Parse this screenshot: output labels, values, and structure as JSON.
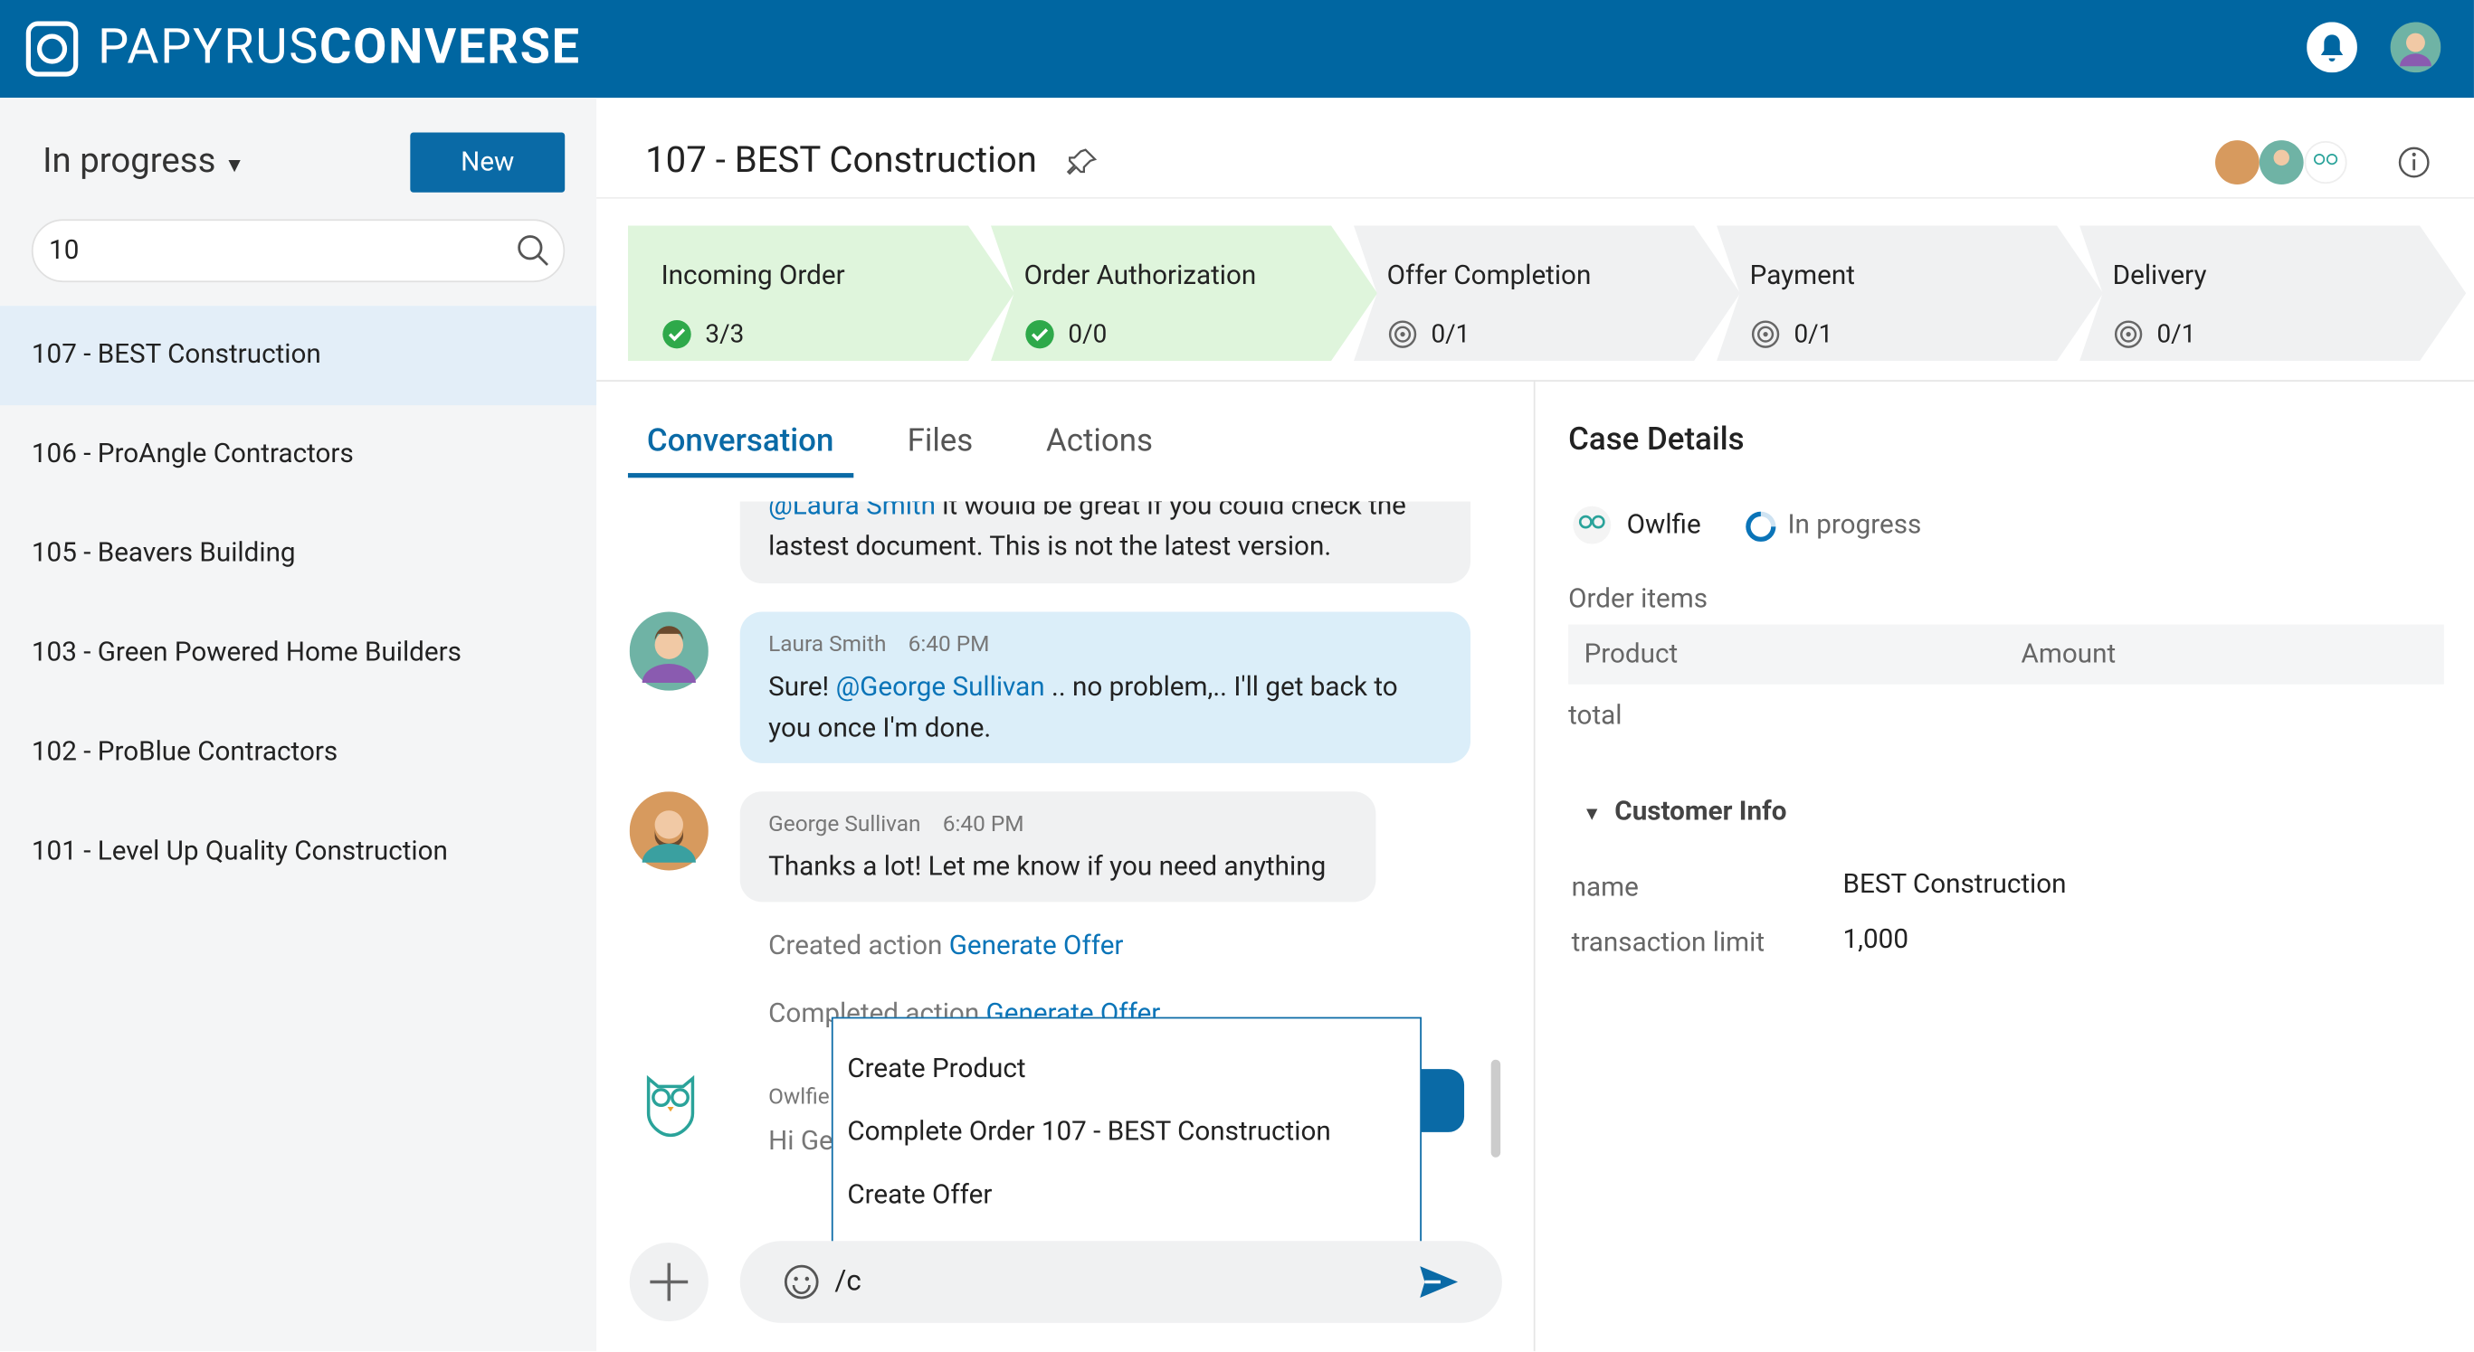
{
  "header": {
    "brand_light": "PAPYRUS",
    "brand_bold": "CONVERSE"
  },
  "sidebar": {
    "filter": "In progress",
    "new_button": "New",
    "search": "10",
    "cases": [
      "107 - BEST Construction",
      "106 - ProAngle Contractors",
      "105 - Beavers Building",
      "103 - Green Powered Home Builders",
      "102 - ProBlue Contractors",
      "101 - Level Up Quality Construction"
    ]
  },
  "case": {
    "title": "107 - BEST Construction",
    "stages": [
      {
        "name": "Incoming Order",
        "count": "3/3"
      },
      {
        "name": "Order Authorization",
        "count": "0/0"
      },
      {
        "name": "Offer Completion",
        "count": "0/1"
      },
      {
        "name": "Payment",
        "count": "0/1"
      },
      {
        "name": "Delivery",
        "count": "0/1"
      }
    ],
    "tabs": [
      "Conversation",
      "Files",
      "Actions"
    ]
  },
  "conversation": {
    "msg0": {
      "mention": "@Laura Smith",
      "text": "it would be great if you could check the lastest document. This is not the latest version."
    },
    "msg1": {
      "author": "Laura Smith",
      "time": "6:40 PM",
      "text": "Sure!",
      "mention": "@George Sullivan",
      "text2": ".. no problem,.. I'll get back to you once I'm done."
    },
    "msg2": {
      "author": "George Sullivan",
      "time": "6:40 PM",
      "text": "Thanks a lot! Let me know if you need anything"
    },
    "events": [
      {
        "text": "Created action",
        "link": "Generate Offer"
      },
      {
        "text": "Completed action",
        "link": "Generate Offer"
      }
    ],
    "msg3": {
      "author": "Owlfie",
      "text": "Hi Ge"
    },
    "suggestions": [
      "Create Product",
      "Complete Order 107 - BEST Construction",
      "Create Offer"
    ],
    "input": "/c"
  },
  "details": {
    "title": "Case Details",
    "owner": "Owlfie",
    "status": "In progress",
    "order_items": "Order items",
    "columns": [
      "Product",
      "Amount"
    ],
    "total": "total",
    "customer_info": "Customer Info",
    "fields": [
      {
        "label": "name",
        "value": "BEST Construction"
      },
      {
        "label": "transaction limit",
        "value": "1,000"
      }
    ]
  }
}
